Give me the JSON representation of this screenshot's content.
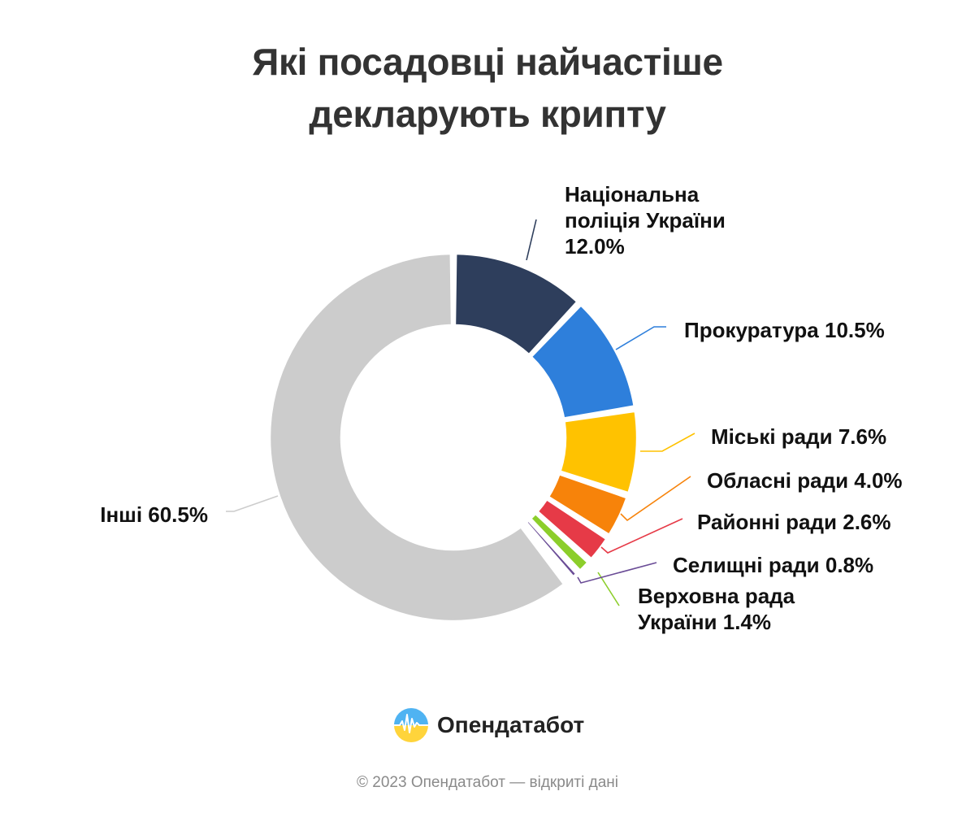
{
  "title": {
    "line1": "Які посадовці найчастіше",
    "line2": "декларують крипту"
  },
  "chart_data": {
    "type": "pie",
    "variant": "donut",
    "title": "Які посадовці найчастіше декларують крипту",
    "unit": "%",
    "slices": [
      {
        "name": "Національна поліція України",
        "value": 12.0,
        "label_lines": [
          "Національна",
          "поліція України",
          "12.0%"
        ],
        "color": "#2e3e5c"
      },
      {
        "name": "Прокуратура",
        "value": 10.5,
        "label_lines": [
          "Прокуратура 10.5%"
        ],
        "color": "#2e7fdb"
      },
      {
        "name": "Міські ради",
        "value": 7.6,
        "label_lines": [
          "Міські ради 7.6%"
        ],
        "color": "#ffc200"
      },
      {
        "name": "Обласні ради",
        "value": 4.0,
        "label_lines": [
          "Обласні ради 4.0%"
        ],
        "color": "#f7830a"
      },
      {
        "name": "Районні ради",
        "value": 2.6,
        "label_lines": [
          "Районні ради 2.6%"
        ],
        "color": "#e63a47"
      },
      {
        "name": "Верховна рада України",
        "value": 1.4,
        "label_lines": [
          "Верховна рада",
          "України 1.4%"
        ],
        "color": "#8cce2b"
      },
      {
        "name": "Селищні ради",
        "value": 0.8,
        "label_lines": [
          "Селищні ради 0.8%"
        ],
        "color": "#6a4c96"
      },
      {
        "name": "",
        "value": 0.6,
        "label_lines": [],
        "color": "#9b9b9b"
      },
      {
        "name": "Інші",
        "value": 60.5,
        "label_lines": [
          "Інші 60.5%"
        ],
        "color": "#cccccc"
      }
    ]
  },
  "brand": {
    "name": "Опендатабот"
  },
  "footer": "© 2023 Опендатабот — відкриті дані"
}
